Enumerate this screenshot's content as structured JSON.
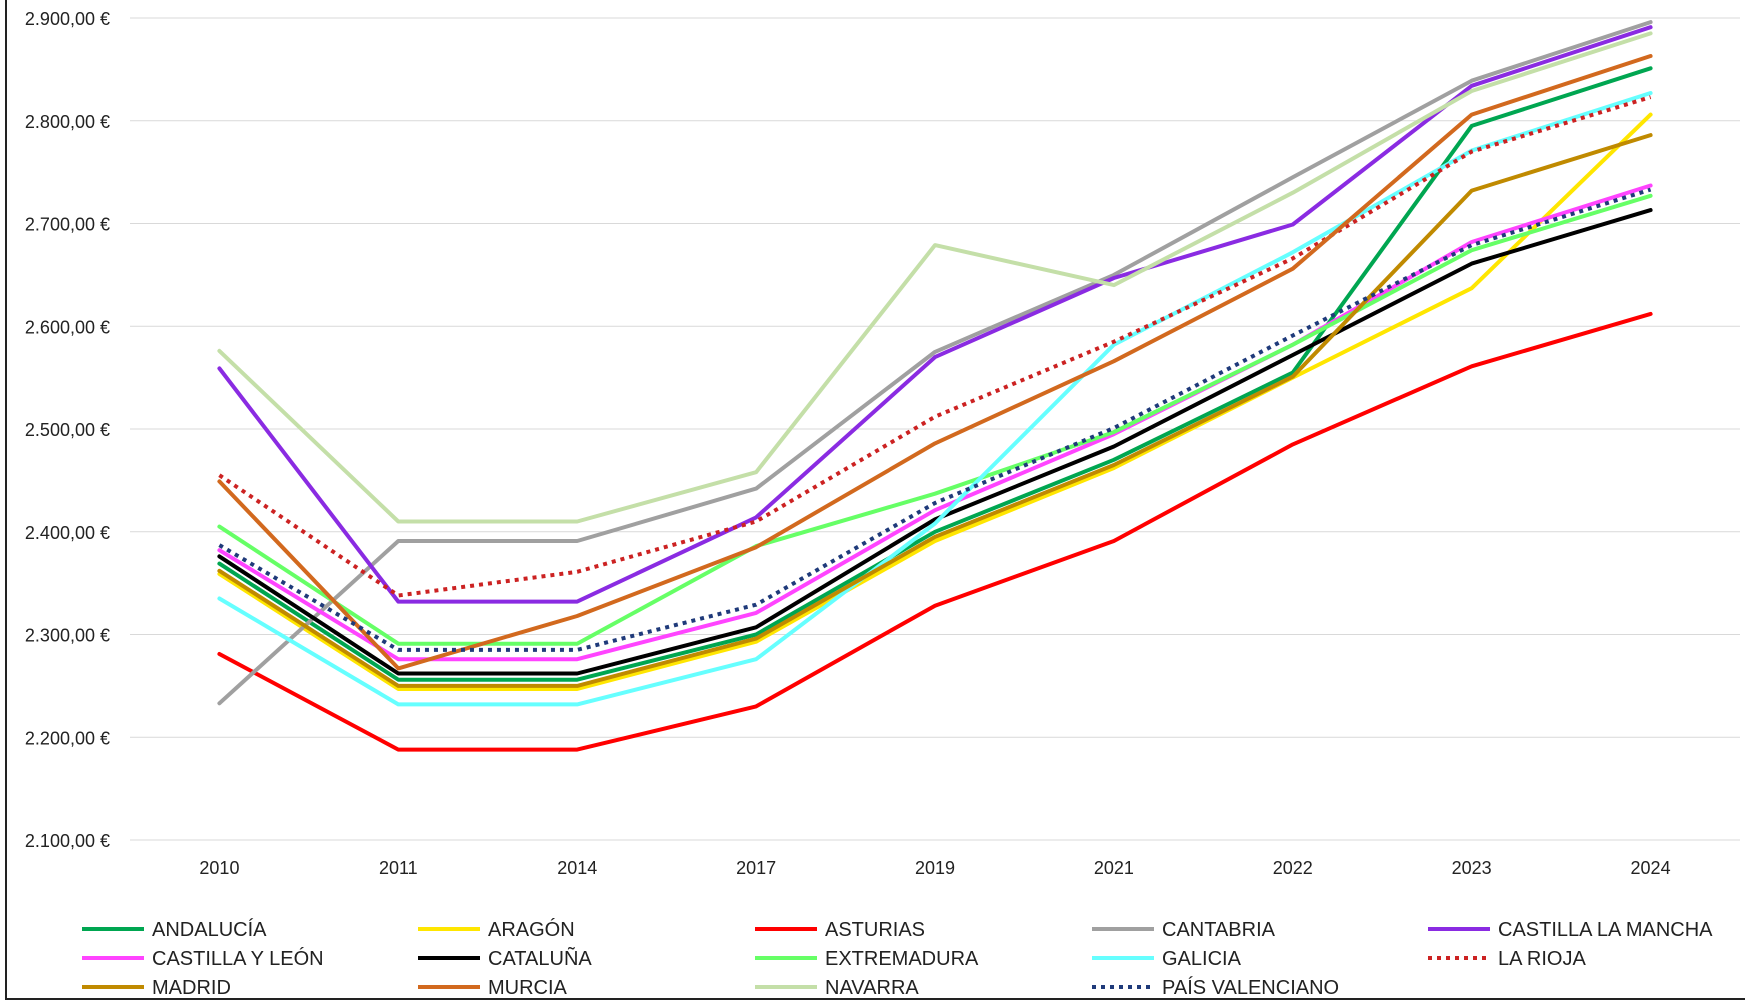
{
  "chart_data": {
    "type": "line",
    "title": "",
    "xlabel": "",
    "ylabel": "",
    "ylim": [
      2100,
      2900
    ],
    "y_ticks": [
      2100,
      2200,
      2300,
      2400,
      2500,
      2600,
      2700,
      2800,
      2900
    ],
    "y_tick_labels": [
      "2.100,00 €",
      "2.200,00 €",
      "2.300,00 €",
      "2.400,00 €",
      "2.500,00 €",
      "2.600,00 €",
      "2.700,00 €",
      "2.800,00 €",
      "2.900,00 €"
    ],
    "categories": [
      "2010",
      "2011",
      "2014",
      "2017",
      "2019",
      "2021",
      "2022",
      "2023",
      "2024"
    ],
    "grid": true,
    "legend_position": "bottom",
    "series": [
      {
        "name": "ANDALUCÍA",
        "color": "#00a651",
        "dashed": false,
        "values": [
          2369,
          2256,
          2256,
          2300,
          2400,
          2470,
          2555,
          2795,
          2851
        ]
      },
      {
        "name": "ARAGÓN",
        "color": "#ffe600",
        "dashed": false,
        "values": [
          2359,
          2247,
          2247,
          2293,
          2391,
          2462,
          2550,
          2637,
          2806
        ]
      },
      {
        "name": "ASTURIAS",
        "color": "#ff0000",
        "dashed": false,
        "values": [
          2281,
          2188,
          2188,
          2230,
          2328,
          2391,
          2485,
          2561,
          2612
        ]
      },
      {
        "name": "CANTABRIA",
        "color": "#a0a0a0",
        "dashed": false,
        "values": [
          2233,
          2391,
          2391,
          2442,
          2575,
          2650,
          2745,
          2839,
          2896
        ]
      },
      {
        "name": "CASTILLA LA MANCHA",
        "color": "#8a2be2",
        "dashed": false,
        "values": [
          2559,
          2332,
          2332,
          2414,
          2570,
          2647,
          2699,
          2834,
          2891
        ]
      },
      {
        "name": "CASTILLA Y LEÓN",
        "color": "#ff44ff",
        "dashed": false,
        "values": [
          2382,
          2276,
          2276,
          2321,
          2421,
          2495,
          2582,
          2682,
          2737
        ]
      },
      {
        "name": "CATALUÑA",
        "color": "#000000",
        "dashed": false,
        "values": [
          2376,
          2262,
          2262,
          2307,
          2412,
          2483,
          2572,
          2661,
          2713
        ]
      },
      {
        "name": "EXTREMADURA",
        "color": "#66ff66",
        "dashed": false,
        "values": [
          2405,
          2291,
          2291,
          2386,
          2437,
          2497,
          2582,
          2674,
          2727
        ]
      },
      {
        "name": "GALICIA",
        "color": "#66ffff",
        "dashed": false,
        "values": [
          2335,
          2232,
          2232,
          2276,
          2408,
          2582,
          2672,
          2771,
          2827
        ]
      },
      {
        "name": "LA RIOJA",
        "color": "#cc2222",
        "dashed": true,
        "values": [
          2455,
          2338,
          2361,
          2410,
          2512,
          2585,
          2666,
          2770,
          2823
        ]
      },
      {
        "name": "MADRID",
        "color": "#c08a00",
        "dashed": false,
        "values": [
          2362,
          2250,
          2250,
          2296,
          2395,
          2465,
          2551,
          2732,
          2786
        ]
      },
      {
        "name": "MURCIA",
        "color": "#d2691e",
        "dashed": false,
        "values": [
          2449,
          2267,
          2318,
          2385,
          2486,
          2566,
          2656,
          2806,
          2863
        ]
      },
      {
        "name": "NAVARRA",
        "color": "#c4dfa8",
        "dashed": false,
        "values": [
          2576,
          2410,
          2410,
          2458,
          2679,
          2640,
          2730,
          2829,
          2885
        ]
      },
      {
        "name": "PAÍS VALENCIANO",
        "color": "#1f3a7a",
        "dashed": true,
        "values": [
          2387,
          2285,
          2285,
          2329,
          2428,
          2501,
          2591,
          2679,
          2733
        ]
      }
    ]
  }
}
